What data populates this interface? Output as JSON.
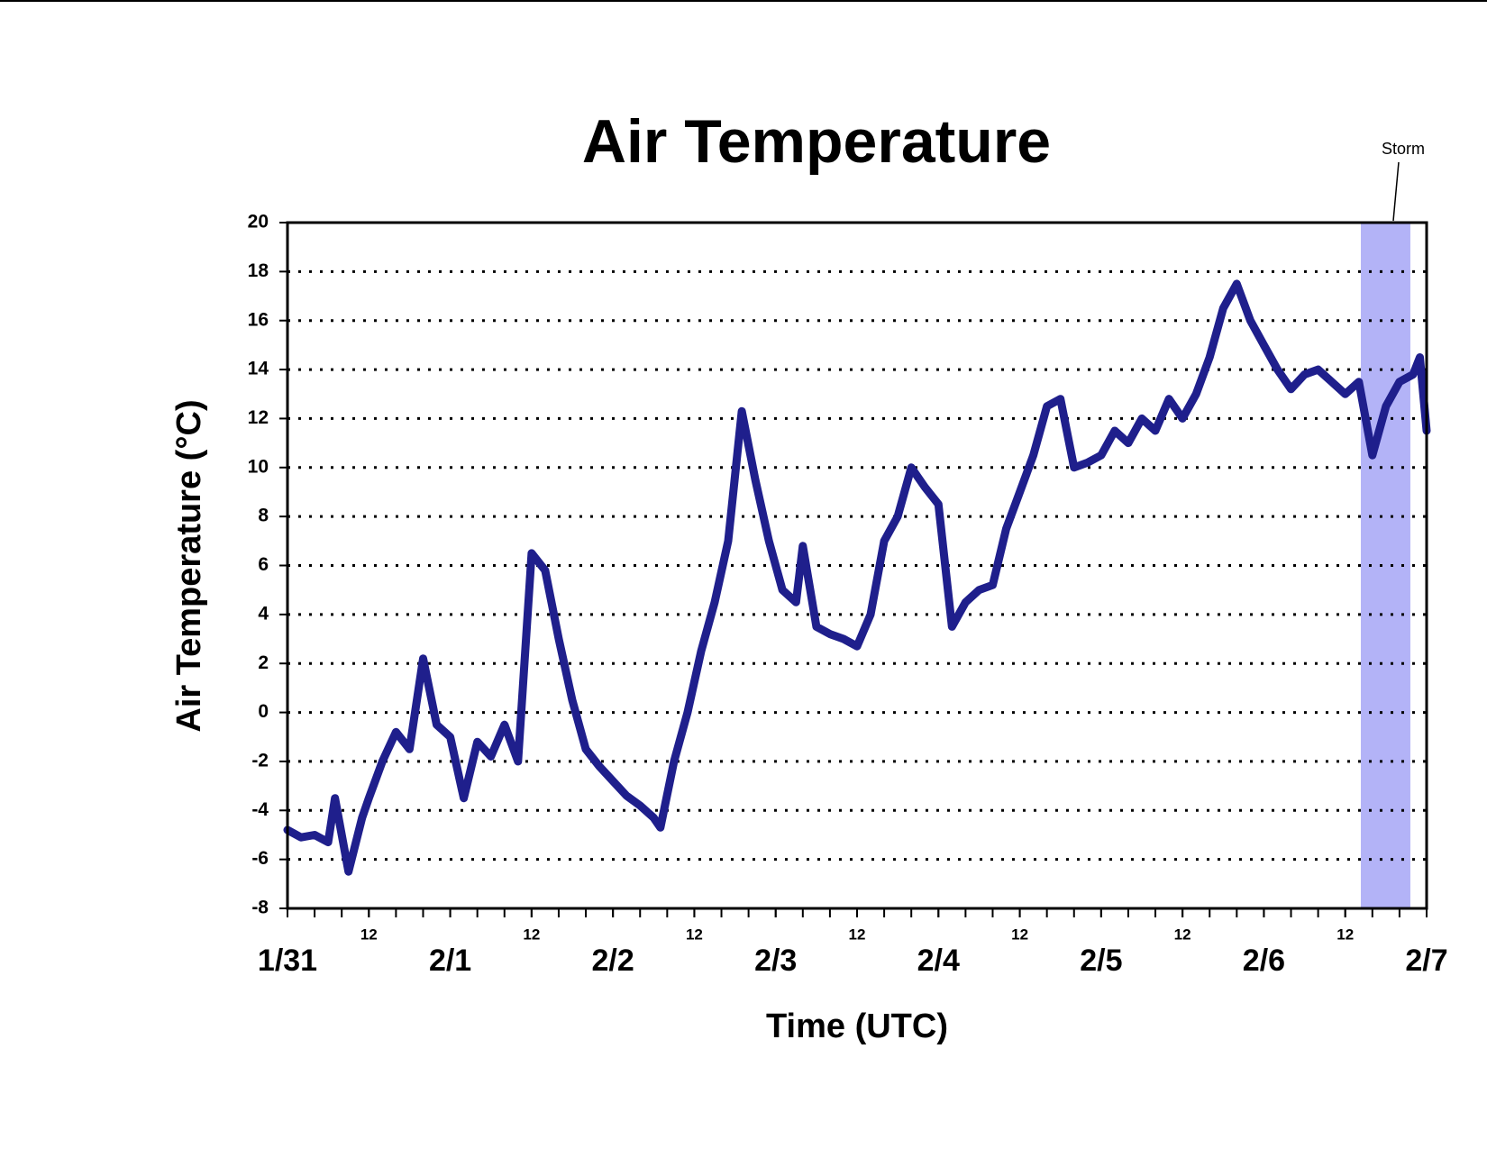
{
  "chart_data": {
    "type": "line",
    "title": "Air Temperature",
    "x_label": "Time (UTC)",
    "y_label": "Air Temperature (°C)",
    "xlim": [
      0,
      168
    ],
    "ylim": [
      -8,
      20
    ],
    "yticks": [
      -8,
      -6,
      -4,
      -2,
      0,
      2,
      4,
      6,
      8,
      10,
      12,
      14,
      16,
      18,
      20
    ],
    "xticks": [
      {
        "value": 0,
        "label": "1/31"
      },
      {
        "value": 12,
        "label": "12"
      },
      {
        "value": 24,
        "label": "2/1"
      },
      {
        "value": 36,
        "label": "12"
      },
      {
        "value": 48,
        "label": "2/2"
      },
      {
        "value": 60,
        "label": "12"
      },
      {
        "value": 72,
        "label": "2/3"
      },
      {
        "value": 84,
        "label": "12"
      },
      {
        "value": 96,
        "label": "2/4"
      },
      {
        "value": 108,
        "label": "12"
      },
      {
        "value": 120,
        "label": "2/5"
      },
      {
        "value": 132,
        "label": "12"
      },
      {
        "value": 144,
        "label": "2/6"
      },
      {
        "value": 156,
        "label": "12"
      },
      {
        "value": 168,
        "label": "2/7"
      }
    ],
    "xminor_ticks": [
      0,
      4,
      8,
      12,
      16,
      20,
      24,
      28,
      32,
      36,
      40,
      44,
      48,
      52,
      56,
      60,
      64,
      68,
      72,
      76,
      80,
      84,
      88,
      92,
      96,
      100,
      104,
      108,
      112,
      116,
      120,
      124,
      128,
      132,
      136,
      140,
      144,
      148,
      152,
      156,
      160,
      164,
      168
    ],
    "grid": true,
    "shaded_span": {
      "label": "Storm",
      "xlim": [
        158.3,
        165.6
      ],
      "color": "#b3b3f7"
    },
    "series": [
      {
        "name": "Air Temperature",
        "color": "#1f1f8c",
        "x": [
          0,
          2,
          4,
          6,
          7,
          9,
          11,
          12,
          14,
          16,
          18,
          20,
          22,
          24,
          26,
          28,
          30,
          32,
          34,
          36,
          38,
          40,
          42,
          44,
          46,
          48,
          50,
          52,
          54,
          55,
          57,
          59,
          61,
          63,
          65,
          67,
          69,
          71,
          73,
          75,
          76,
          78,
          80,
          82,
          84,
          86,
          88,
          90,
          92,
          94,
          96,
          98,
          100,
          102,
          104,
          106,
          108,
          110,
          112,
          114,
          116,
          118,
          120,
          122,
          124,
          126,
          128,
          130,
          132,
          134,
          136,
          138,
          140,
          142,
          144,
          146,
          148,
          150,
          152,
          154,
          156,
          158,
          160,
          162,
          164,
          166,
          167,
          168
        ],
        "values": [
          -4.8,
          -5.1,
          -5.0,
          -5.3,
          -3.5,
          -6.5,
          -4.3,
          -3.5,
          -2.0,
          -0.8,
          -1.5,
          2.2,
          -0.5,
          -1.0,
          -3.5,
          -1.2,
          -1.8,
          -0.5,
          -2.0,
          6.5,
          5.8,
          3.0,
          0.5,
          -1.5,
          -2.2,
          -2.8,
          -3.4,
          -3.8,
          -4.3,
          -4.7,
          -2.0,
          0.0,
          2.5,
          4.5,
          7.0,
          12.3,
          9.5,
          7.0,
          5.0,
          4.5,
          6.8,
          3.5,
          3.2,
          3.0,
          2.7,
          4.0,
          7.0,
          8.0,
          10.0,
          9.2,
          8.5,
          3.5,
          4.5,
          5.0,
          5.2,
          7.5,
          9.0,
          10.5,
          12.5,
          12.8,
          10.0,
          10.2,
          10.5,
          11.5,
          11.0,
          12.0,
          11.5,
          12.8,
          12.0,
          13.0,
          14.5,
          16.5,
          17.5,
          16.0,
          15.0,
          14.0,
          13.2,
          13.8,
          14.0,
          13.5,
          13.0,
          13.5,
          10.5,
          12.5,
          13.5,
          13.8,
          14.5,
          11.5
        ]
      }
    ]
  }
}
